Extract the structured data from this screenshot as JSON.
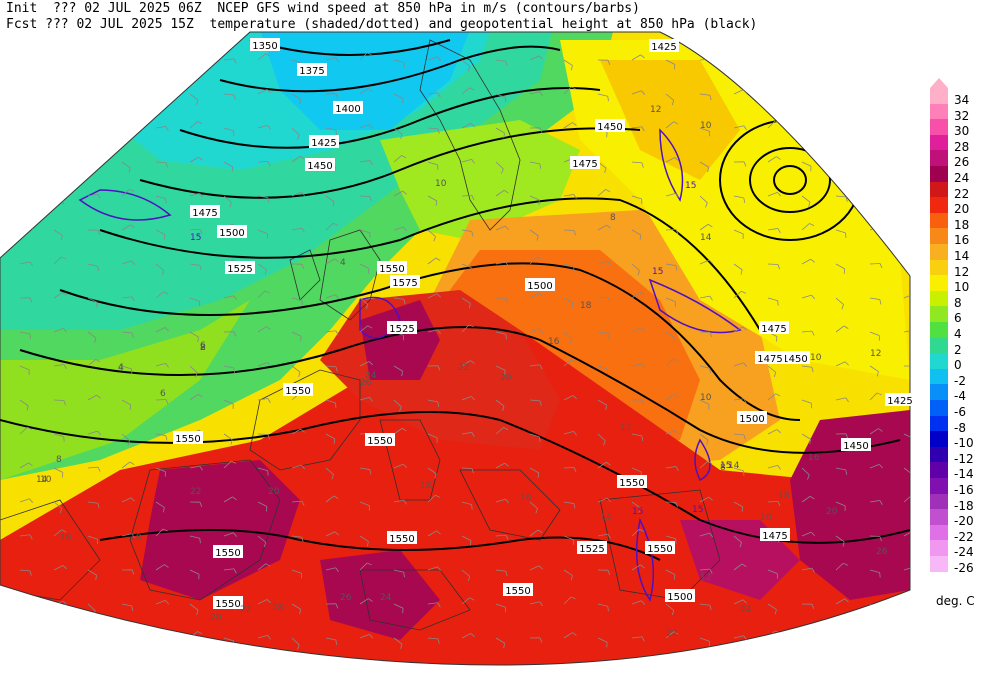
{
  "header": {
    "line1": "Init  ??? 02 JUL 2025 06Z  NCEP GFS wind speed at 850 hPa in m/s (contours/barbs)",
    "line2": "Fcst ??? 02 JUL 2025 15Z  temperature (shaded/dotted) and geopotential height at 850 hPa (black)"
  },
  "legend": {
    "units": "deg. C",
    "levels": [
      {
        "label": "34",
        "color": "#ffb0c8"
      },
      {
        "label": "32",
        "color": "#ff80b8"
      },
      {
        "label": "30",
        "color": "#f850a8"
      },
      {
        "label": "28",
        "color": "#e0209a"
      },
      {
        "label": "26",
        "color": "#c0107a"
      },
      {
        "label": "24",
        "color": "#a00050"
      },
      {
        "label": "22",
        "color": "#d01818"
      },
      {
        "label": "20",
        "color": "#f02810"
      },
      {
        "label": "18",
        "color": "#f86010"
      },
      {
        "label": "16",
        "color": "#f88818"
      },
      {
        "label": "14",
        "color": "#f8b020"
      },
      {
        "label": "12",
        "color": "#f8d010"
      },
      {
        "label": "10",
        "color": "#f8f000"
      },
      {
        "label": "8",
        "color": "#c8f000"
      },
      {
        "label": "6",
        "color": "#90e820"
      },
      {
        "label": "4",
        "color": "#50e040"
      },
      {
        "label": "2",
        "color": "#30d890"
      },
      {
        "label": "0",
        "color": "#20d8d0"
      },
      {
        "label": "-2",
        "color": "#10c0f0"
      },
      {
        "label": "-4",
        "color": "#0890f8"
      },
      {
        "label": "-6",
        "color": "#0060f8"
      },
      {
        "label": "-8",
        "color": "#0030f0"
      },
      {
        "label": "-10",
        "color": "#0000c8"
      },
      {
        "label": "-12",
        "color": "#3000b0"
      },
      {
        "label": "-14",
        "color": "#6000a8"
      },
      {
        "label": "-16",
        "color": "#8010b0"
      },
      {
        "label": "-18",
        "color": "#a030b8"
      },
      {
        "label": "-20",
        "color": "#c050d0"
      },
      {
        "label": "-22",
        "color": "#e070e8"
      },
      {
        "label": "-24",
        "color": "#f098f0"
      },
      {
        "label": "-26",
        "color": "#f8b8f8"
      }
    ]
  },
  "map": {
    "height_labels": [
      "1350",
      "1375",
      "1400",
      "1425",
      "1450",
      "1475",
      "1500",
      "1525",
      "1550",
      "1575",
      "1425",
      "1450",
      "1475",
      "1500",
      "1525",
      "1550",
      "1475",
      "1450",
      "1475",
      "1500",
      "1550",
      "1550",
      "1550",
      "1550",
      "1550",
      "1550",
      "1550",
      "1550",
      "1500",
      "1525",
      "1475",
      "1450",
      "1425"
    ],
    "temp_labels": [
      "10",
      "10",
      "8",
      "8",
      "6",
      "4",
      "2",
      "4",
      "6",
      "4",
      "8",
      "10",
      "12",
      "14",
      "16",
      "18",
      "20",
      "22",
      "24",
      "26",
      "22",
      "20",
      "18",
      "16",
      "14",
      "12",
      "10",
      "8",
      "10",
      "12",
      "14",
      "16",
      "18",
      "20",
      "22",
      "24",
      "26",
      "28",
      "26",
      "24",
      "22",
      "20",
      "18",
      "16",
      "14",
      "12",
      "10"
    ],
    "wind_labels": [
      "15",
      "15",
      "15",
      "15",
      "15",
      "15"
    ]
  }
}
